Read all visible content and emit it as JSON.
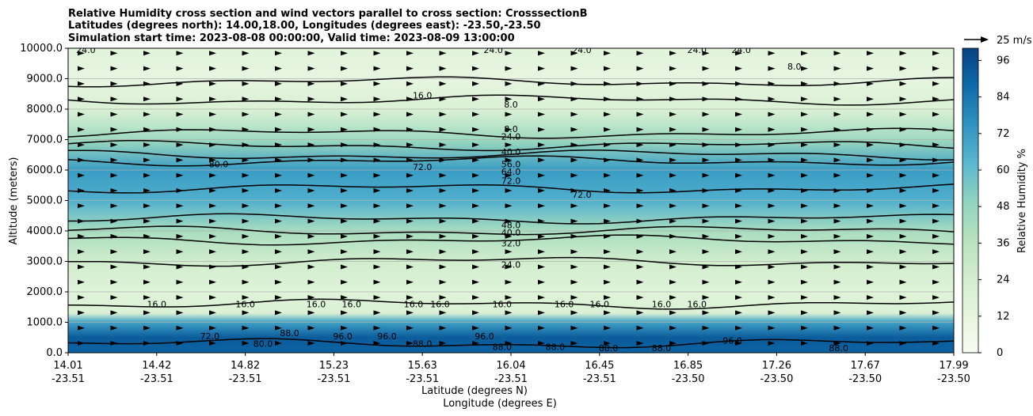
{
  "chart_data": {
    "type": "contour",
    "title_lines": [
      "Relative Humidity cross section and wind vectors parallel to cross section: CrosssectionB",
      "Latitudes (degrees north): 14.00,18.00, Longitudes (degrees east): -23.50,-23.50",
      "Simulation start time: 2023-08-08 00:00:00, Valid time: 2023-08-09 13:00:00"
    ],
    "ylabel": "Altitude (meters)",
    "xlabel_lines": [
      "Latitude (degrees N)",
      "Longitude (degrees E)"
    ],
    "ylim": [
      0,
      10000
    ],
    "y_ticks": [
      "0.0",
      "1000.0",
      "2000.0",
      "3000.0",
      "4000.0",
      "5000.0",
      "6000.0",
      "7000.0",
      "8000.0",
      "9000.0",
      "10000.0"
    ],
    "x_ticks": [
      {
        "lat": "14.01",
        "lon": "-23.51"
      },
      {
        "lat": "14.42",
        "lon": "-23.51"
      },
      {
        "lat": "14.82",
        "lon": "-23.51"
      },
      {
        "lat": "15.23",
        "lon": "-23.51"
      },
      {
        "lat": "15.63",
        "lon": "-23.51"
      },
      {
        "lat": "16.04",
        "lon": "-23.51"
      },
      {
        "lat": "16.45",
        "lon": "-23.51"
      },
      {
        "lat": "16.85",
        "lon": "-23.50"
      },
      {
        "lat": "17.26",
        "lon": "-23.50"
      },
      {
        "lat": "17.67",
        "lon": "-23.50"
      },
      {
        "lat": "17.99",
        "lon": "-23.50"
      }
    ],
    "grid": "horizontal",
    "colorbar": {
      "label": "Relative Humidity %",
      "range": [
        0,
        100
      ],
      "ticks": [
        "0",
        "12",
        "24",
        "36",
        "48",
        "60",
        "72",
        "84",
        "96"
      ]
    },
    "quiver_key": "25 m/s",
    "rh_profile": [
      {
        "alt": 0,
        "rh": 90
      },
      {
        "alt": 500,
        "rh": 92
      },
      {
        "alt": 1000,
        "rh": 70
      },
      {
        "alt": 1300,
        "rh": 20
      },
      {
        "alt": 2000,
        "rh": 17
      },
      {
        "alt": 3000,
        "rh": 25
      },
      {
        "alt": 4000,
        "rh": 42
      },
      {
        "alt": 5000,
        "rh": 65
      },
      {
        "alt": 6000,
        "rh": 72
      },
      {
        "alt": 7000,
        "rh": 45
      },
      {
        "alt": 8000,
        "rh": 20
      },
      {
        "alt": 9000,
        "rh": 12
      },
      {
        "alt": 10000,
        "rh": 15
      }
    ],
    "contour_levels": [
      {
        "level": 8,
        "alt": 8300
      },
      {
        "level": 16,
        "alt": 8900
      },
      {
        "level": 24,
        "alt": 7200
      },
      {
        "level": 40,
        "alt": 6800
      },
      {
        "level": 56,
        "alt": 6500
      },
      {
        "level": 64,
        "alt": 6300
      },
      {
        "level": 72,
        "alt": 5400
      },
      {
        "level": 48,
        "alt": 4400
      },
      {
        "level": 40,
        "alt": 4000
      },
      {
        "level": 32,
        "alt": 3700
      },
      {
        "level": 24,
        "alt": 3000
      },
      {
        "level": 16,
        "alt": 1600
      },
      {
        "level": 88,
        "alt": 300
      }
    ],
    "contour_labels": [
      {
        "text": "24.0",
        "x": 0.02,
        "alt": 9950
      },
      {
        "text": "24.0",
        "x": 0.48,
        "alt": 9950
      },
      {
        "text": "24.0",
        "x": 0.58,
        "alt": 9950
      },
      {
        "text": "24.0",
        "x": 0.71,
        "alt": 9950
      },
      {
        "text": "24.0",
        "x": 0.76,
        "alt": 9950
      },
      {
        "text": "8.0",
        "x": 0.82,
        "alt": 9400
      },
      {
        "text": "16.0",
        "x": 0.4,
        "alt": 8450
      },
      {
        "text": "8.0",
        "x": 0.5,
        "alt": 8150
      },
      {
        "text": "8.0",
        "x": 0.5,
        "alt": 7350
      },
      {
        "text": "24.0",
        "x": 0.5,
        "alt": 7100
      },
      {
        "text": "40.0",
        "x": 0.5,
        "alt": 6600
      },
      {
        "text": "56.0",
        "x": 0.5,
        "alt": 6200
      },
      {
        "text": "64.0",
        "x": 0.5,
        "alt": 5950
      },
      {
        "text": "72.0",
        "x": 0.5,
        "alt": 5650
      },
      {
        "text": "72.0",
        "x": 0.4,
        "alt": 6100
      },
      {
        "text": "80.0",
        "x": 0.17,
        "alt": 6200
      },
      {
        "text": "72.0",
        "x": 0.58,
        "alt": 5200
      },
      {
        "text": "48.0",
        "x": 0.5,
        "alt": 4200
      },
      {
        "text": "40.0",
        "x": 0.5,
        "alt": 3950
      },
      {
        "text": "32.0",
        "x": 0.5,
        "alt": 3600
      },
      {
        "text": "24.0",
        "x": 0.5,
        "alt": 2900
      },
      {
        "text": "16.0",
        "x": 0.42,
        "alt": 1600
      },
      {
        "text": "16.0",
        "x": 0.1,
        "alt": 1600
      },
      {
        "text": "16.0",
        "x": 0.2,
        "alt": 1600
      },
      {
        "text": "16.0",
        "x": 0.28,
        "alt": 1600
      },
      {
        "text": "16.0",
        "x": 0.32,
        "alt": 1600
      },
      {
        "text": "16.0",
        "x": 0.39,
        "alt": 1600
      },
      {
        "text": "16.0",
        "x": 0.49,
        "alt": 1600
      },
      {
        "text": "16.0",
        "x": 0.56,
        "alt": 1600
      },
      {
        "text": "16.0",
        "x": 0.6,
        "alt": 1600
      },
      {
        "text": "16.0",
        "x": 0.67,
        "alt": 1600
      },
      {
        "text": "16.0",
        "x": 0.71,
        "alt": 1600
      },
      {
        "text": "88.0",
        "x": 0.25,
        "alt": 650
      },
      {
        "text": "88.0",
        "x": 0.4,
        "alt": 300
      },
      {
        "text": "88.0",
        "x": 0.49,
        "alt": 200
      },
      {
        "text": "88.0",
        "x": 0.55,
        "alt": 200
      },
      {
        "text": "88.0",
        "x": 0.61,
        "alt": 150
      },
      {
        "text": "88.0",
        "x": 0.67,
        "alt": 150
      },
      {
        "text": "88.0",
        "x": 0.87,
        "alt": 150
      },
      {
        "text": "96.0",
        "x": 0.31,
        "alt": 550
      },
      {
        "text": "96.0",
        "x": 0.36,
        "alt": 550
      },
      {
        "text": "96.0",
        "x": 0.47,
        "alt": 550
      },
      {
        "text": "96.0",
        "x": 0.75,
        "alt": 400
      },
      {
        "text": "72.0",
        "x": 0.16,
        "alt": 550
      },
      {
        "text": "80.0",
        "x": 0.22,
        "alt": 300
      }
    ]
  }
}
